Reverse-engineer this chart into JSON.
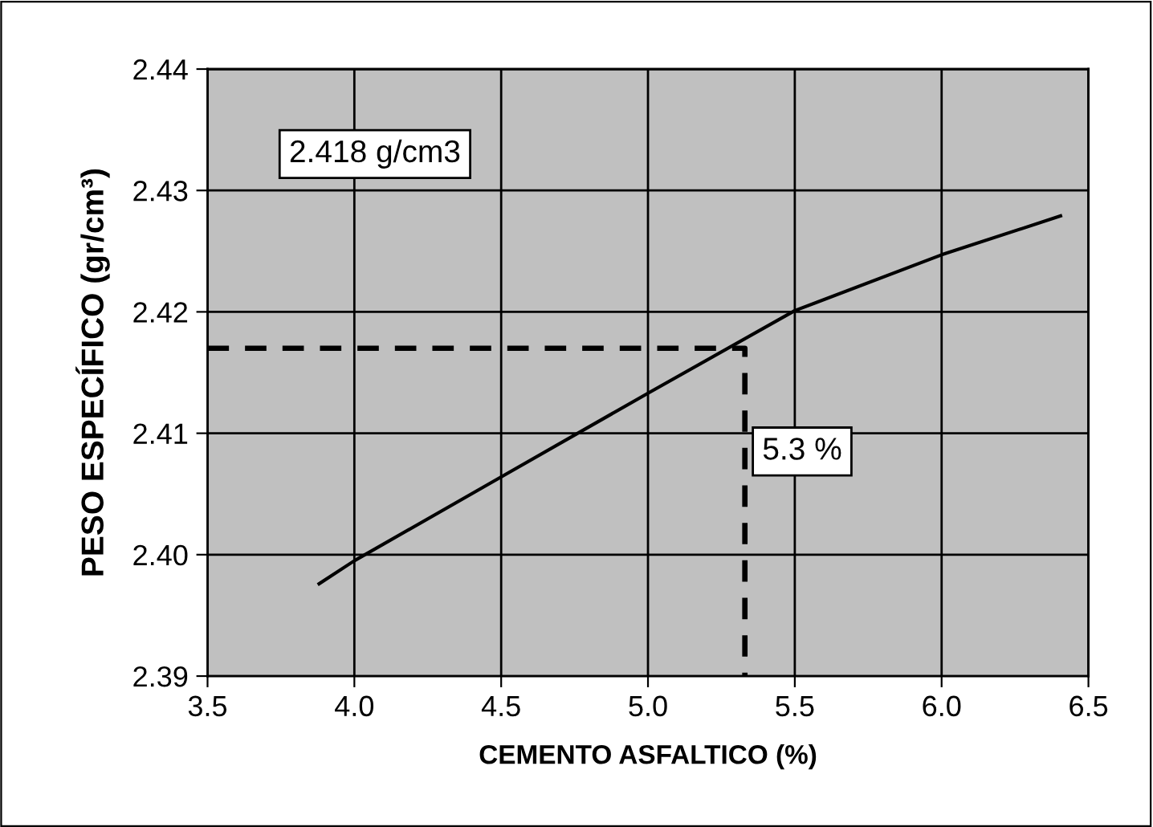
{
  "chart_data": {
    "type": "line",
    "xlabel": "CEMENTO ASFALTICO (%)",
    "ylabel": "PESO ESPECÍFICO (gr/cm³)",
    "series": [
      {
        "color": "#000000",
        "line_style": "solid",
        "x": [
          3.88,
          4.0,
          4.5,
          5.0,
          5.5,
          6.0,
          6.405
        ],
        "values": [
          2.3976,
          2.3995,
          2.4064,
          2.4133,
          2.4201,
          2.4247,
          2.4279
        ]
      },
      {
        "color": "#000000",
        "line_style": "dashed",
        "x": [
          3.5,
          5.33,
          5.33
        ],
        "values": [
          2.417,
          2.417,
          2.39
        ]
      }
    ],
    "annotations": [
      "2.418 g/cm3",
      "5.3 %"
    ],
    "xlim": [
      3.5,
      6.5
    ],
    "xticks": [
      3.5,
      {
        "value": 4.0,
        "label": "4.0"
      },
      4.5,
      {
        "value": 5.0,
        "label": "5.0"
      },
      5.5,
      {
        "value": 6.0,
        "label": "6.0"
      },
      6.5
    ],
    "ylim": [
      2.39,
      2.44
    ],
    "yticks": [
      2.39,
      {
        "value": 2.4,
        "label": "2.40"
      },
      2.41,
      2.42,
      2.43,
      2.44
    ],
    "grid": true,
    "legend": false
  }
}
